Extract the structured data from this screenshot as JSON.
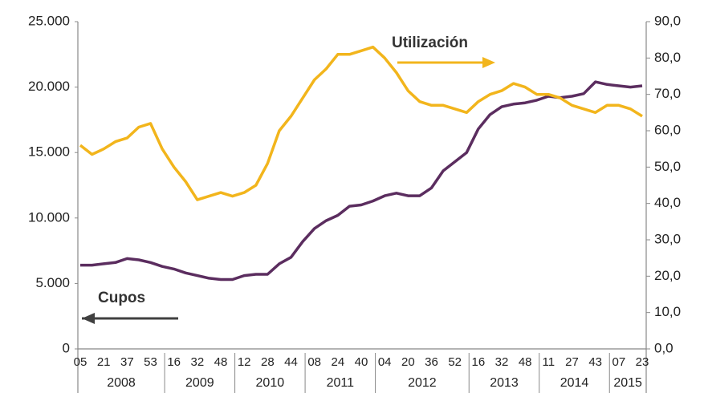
{
  "chart_data": {
    "type": "line",
    "categories": [
      "05",
      null,
      "21",
      null,
      "37",
      null,
      "53",
      null,
      "16",
      null,
      "32",
      null,
      "48",
      null,
      "12",
      null,
      "28",
      null,
      "44",
      null,
      "08",
      null,
      "24",
      null,
      "40",
      null,
      "04",
      null,
      "20",
      null,
      "36",
      null,
      "52",
      null,
      "16",
      null,
      "32",
      null,
      "48",
      null,
      "11",
      null,
      "27",
      null,
      "43",
      null,
      "07",
      null,
      "23"
    ],
    "years": [
      "2008",
      "2009",
      "2010",
      "2011",
      "2012",
      "2013",
      "2014",
      "2015"
    ],
    "series": [
      {
        "name": "Cupos",
        "color": "#5b2d5f",
        "axis": "y",
        "values": [
          6400,
          6400,
          6500,
          6600,
          6900,
          6800,
          6600,
          6300,
          6100,
          5800,
          5600,
          5400,
          5300,
          5300,
          5600,
          5700,
          5700,
          6500,
          7000,
          8200,
          9200,
          9800,
          10200,
          10900,
          11000,
          11300,
          11700,
          11900,
          11700,
          11700,
          12300,
          13600,
          14300,
          15000,
          16800,
          17900,
          18500,
          18700,
          18800,
          19000,
          19300,
          19200,
          19300,
          19500,
          20400,
          20200,
          20100,
          20000,
          20100
        ]
      },
      {
        "name": "Utilización",
        "color": "#f2b51c",
        "axis": "y2",
        "values": [
          56,
          53.5,
          55,
          57,
          58,
          61,
          62,
          55,
          50,
          46,
          41,
          42,
          43,
          42,
          43,
          45,
          51,
          60,
          64,
          69,
          74,
          77,
          81,
          81,
          82,
          83,
          80,
          76,
          71,
          68,
          67,
          67,
          66,
          65,
          68,
          70,
          71,
          73,
          72,
          70,
          70,
          69,
          67,
          66,
          65,
          67,
          67,
          66,
          64
        ]
      }
    ],
    "ylim": [
      0,
      25000
    ],
    "yticks": [
      {
        "value": 0,
        "label": "0"
      },
      {
        "value": 5000,
        "label": "5.000"
      },
      {
        "value": 10000,
        "label": "10.000"
      },
      {
        "value": 15000,
        "label": "15.000"
      },
      {
        "value": 20000,
        "label": "20.000"
      },
      {
        "value": 25000,
        "label": "25.000"
      }
    ],
    "y2lim": [
      0,
      90
    ],
    "y2ticks": [
      {
        "value": 0,
        "label": "0,0"
      },
      {
        "value": 10,
        "label": "10,0"
      },
      {
        "value": 20,
        "label": "20,0"
      },
      {
        "value": 30,
        "label": "30,0"
      },
      {
        "value": 40,
        "label": "40,0"
      },
      {
        "value": 50,
        "label": "50,0"
      },
      {
        "value": 60,
        "label": "60,0"
      },
      {
        "value": 70,
        "label": "70,0"
      },
      {
        "value": 80,
        "label": "80,0"
      },
      {
        "value": 90,
        "label": "90,0"
      }
    ]
  }
}
